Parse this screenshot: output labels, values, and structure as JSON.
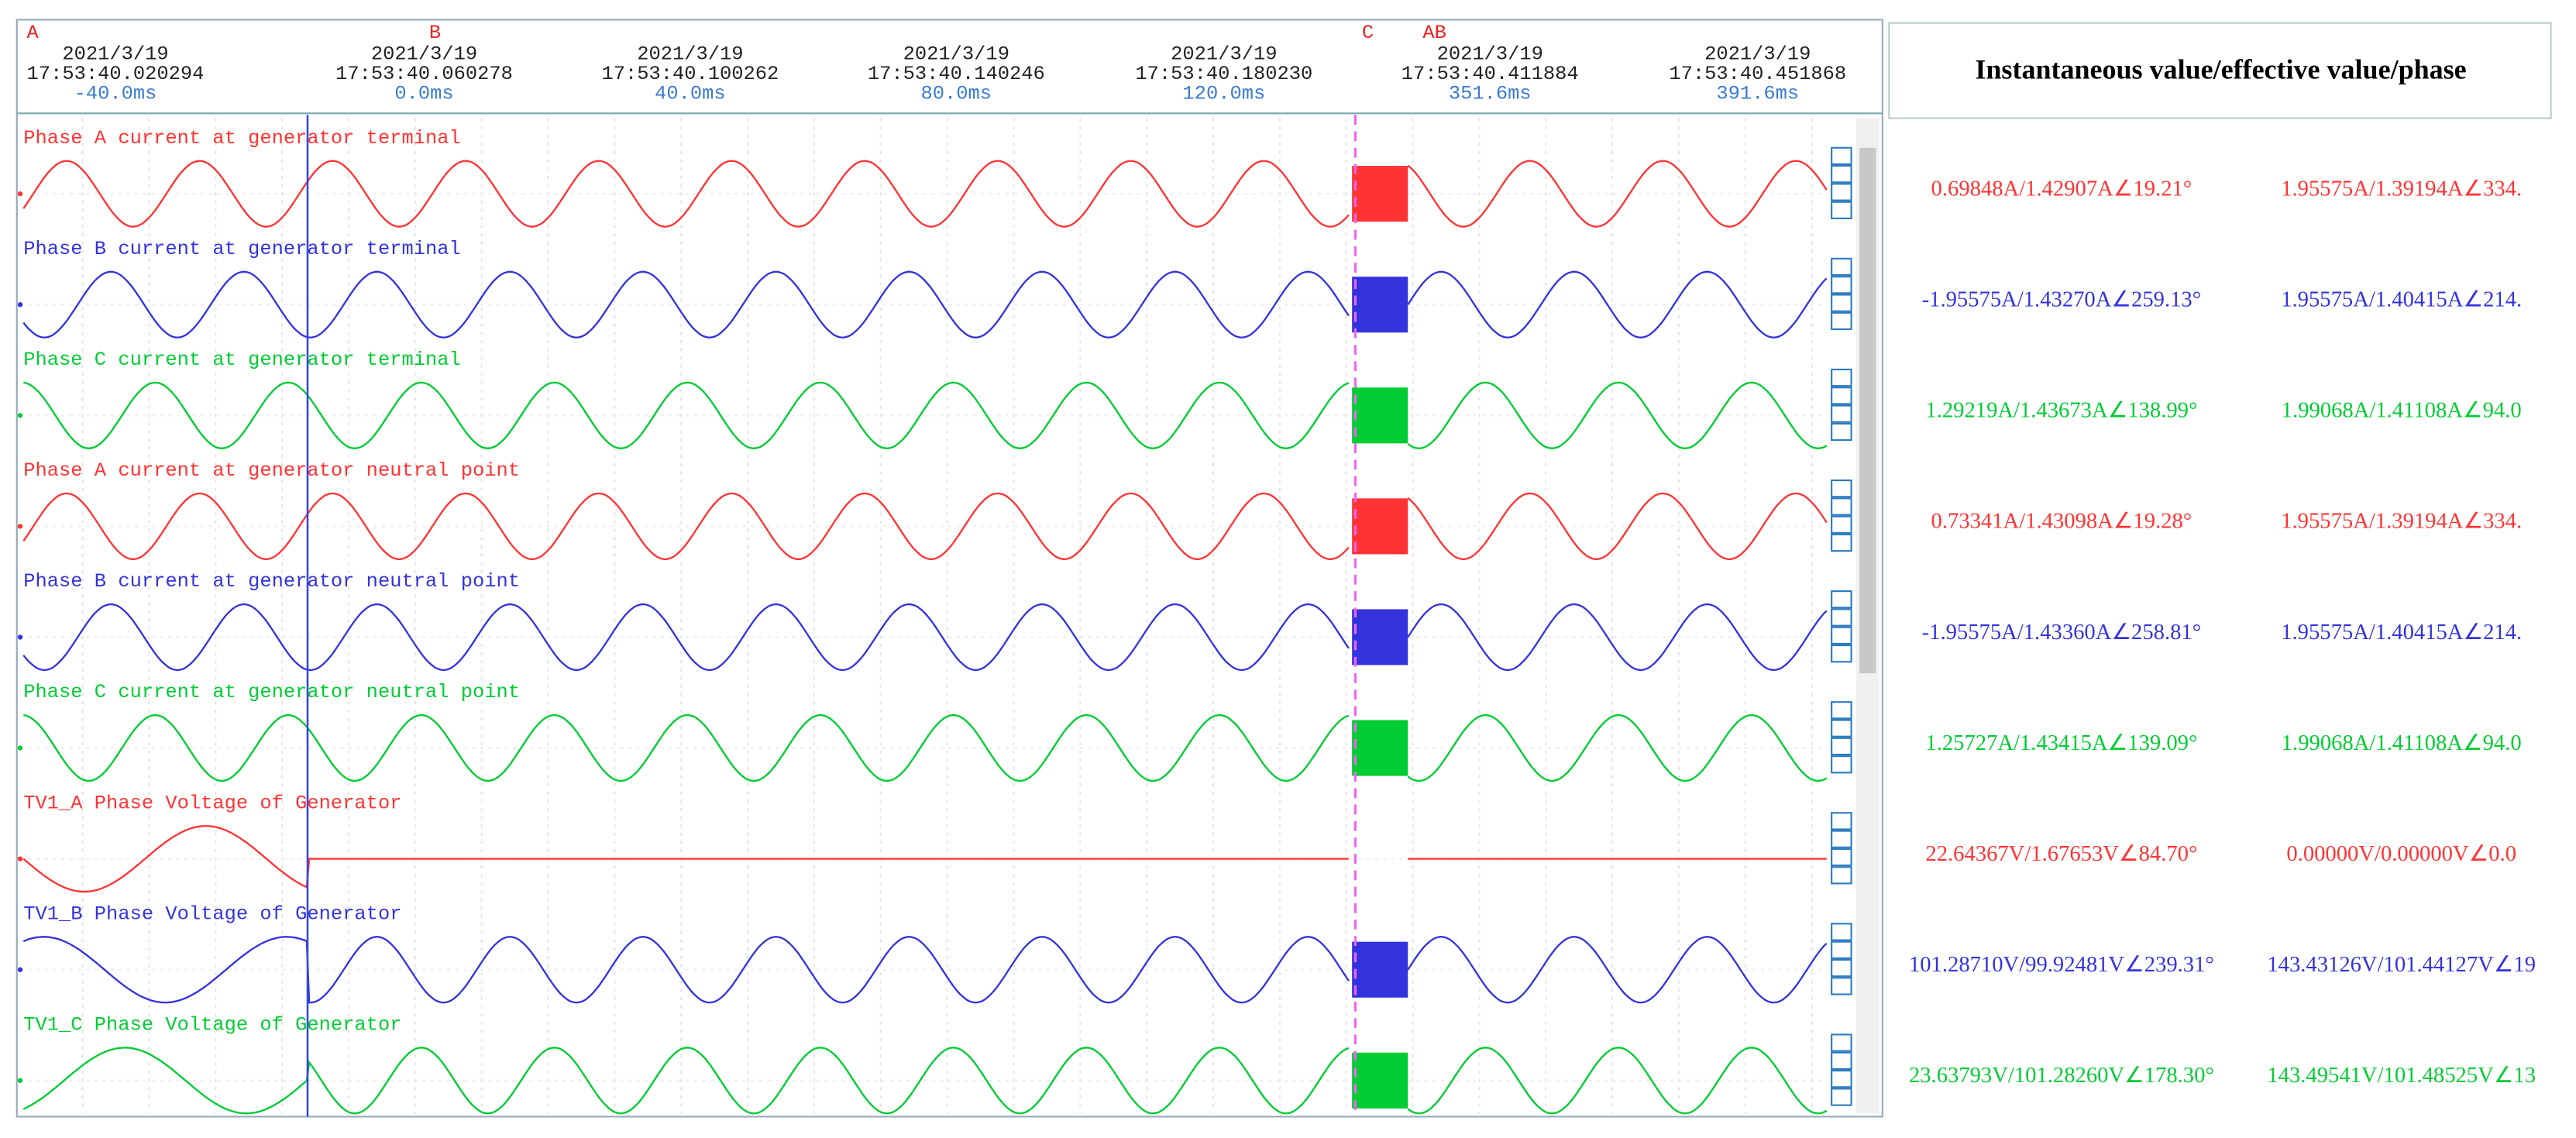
{
  "header": {
    "cursors": [
      "A",
      "B",
      "C",
      "AB"
    ],
    "timestamps": [
      {
        "date": "2021/3/19",
        "time": "17:53:40.020294",
        "offset": "-40.0ms"
      },
      {
        "date": "2021/3/19",
        "time": "17:53:40.060278",
        "offset": "0.0ms"
      },
      {
        "date": "2021/3/19",
        "time": "17:53:40.100262",
        "offset": "40.0ms"
      },
      {
        "date": "2021/3/19",
        "time": "17:53:40.140246",
        "offset": "80.0ms"
      },
      {
        "date": "2021/3/19",
        "time": "17:53:40.180230",
        "offset": "120.0ms"
      },
      {
        "date": "2021/3/19",
        "time": "17:53:40.411884",
        "offset": "351.6ms"
      },
      {
        "date": "2021/3/19",
        "time": "17:53:40.451868",
        "offset": "391.6ms"
      }
    ]
  },
  "panel": {
    "title": "Instantaneous value/effective value/phase"
  },
  "channels": [
    {
      "name": "Phase A current at generator terminal",
      "color": "#ff3333",
      "values": [
        "0.69848A/1.42907A∠19.21°",
        "1.95575A/1.39194A∠334."
      ]
    },
    {
      "name": "Phase B current at generator terminal",
      "color": "#3333dd",
      "values": [
        "-1.95575A/1.43270A∠259.13°",
        "1.95575A/1.40415A∠214."
      ]
    },
    {
      "name": "Phase C current at generator terminal",
      "color": "#00cc33",
      "values": [
        "1.29219A/1.43673A∠138.99°",
        "1.99068A/1.41108A∠94.0"
      ]
    },
    {
      "name": "Phase A current at generator neutral point",
      "color": "#ff3333",
      "values": [
        "0.73341A/1.43098A∠19.28°",
        "1.95575A/1.39194A∠334."
      ]
    },
    {
      "name": "Phase B current at generator neutral point",
      "color": "#3333dd",
      "values": [
        "-1.95575A/1.43360A∠258.81°",
        "1.95575A/1.40415A∠214."
      ]
    },
    {
      "name": "Phase C current at generator neutral point",
      "color": "#00cc33",
      "values": [
        "1.25727A/1.43415A∠139.09°",
        "1.99068A/1.41108A∠94.0"
      ]
    },
    {
      "name": "TV1_A Phase Voltage of Generator",
      "color": "#ff3333",
      "values": [
        "22.64367V/1.67653V∠84.70°",
        "0.00000V/0.00000V∠0.0"
      ]
    },
    {
      "name": "TV1_B Phase Voltage of Generator",
      "color": "#3333dd",
      "values": [
        "101.28710V/99.92481V∠239.31°",
        "143.43126V/101.44127V∠19"
      ]
    },
    {
      "name": "TV1_C Phase Voltage of Generator",
      "color": "#00cc33",
      "values": [
        "23.63793V/101.28260V∠178.30°",
        "143.49541V/101.48525V∠13"
      ]
    }
  ]
}
